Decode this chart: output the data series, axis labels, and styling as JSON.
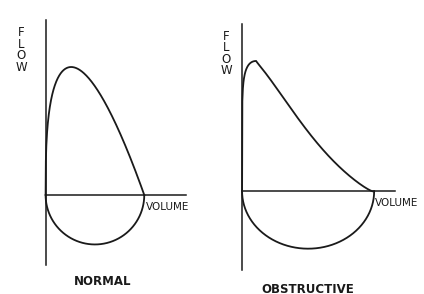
{
  "background_color": "#ffffff",
  "title_normal": "NORMAL",
  "title_obstructive": "OBSTRUCTIVE",
  "flow_label": "F\nL\nO\nW",
  "volume_label": "VOLUME",
  "line_color": "#1a1a1a",
  "line_width": 1.3,
  "title_fontsize": 8.5,
  "label_fontsize": 7.5,
  "flow_label_fontsize": 8.5
}
